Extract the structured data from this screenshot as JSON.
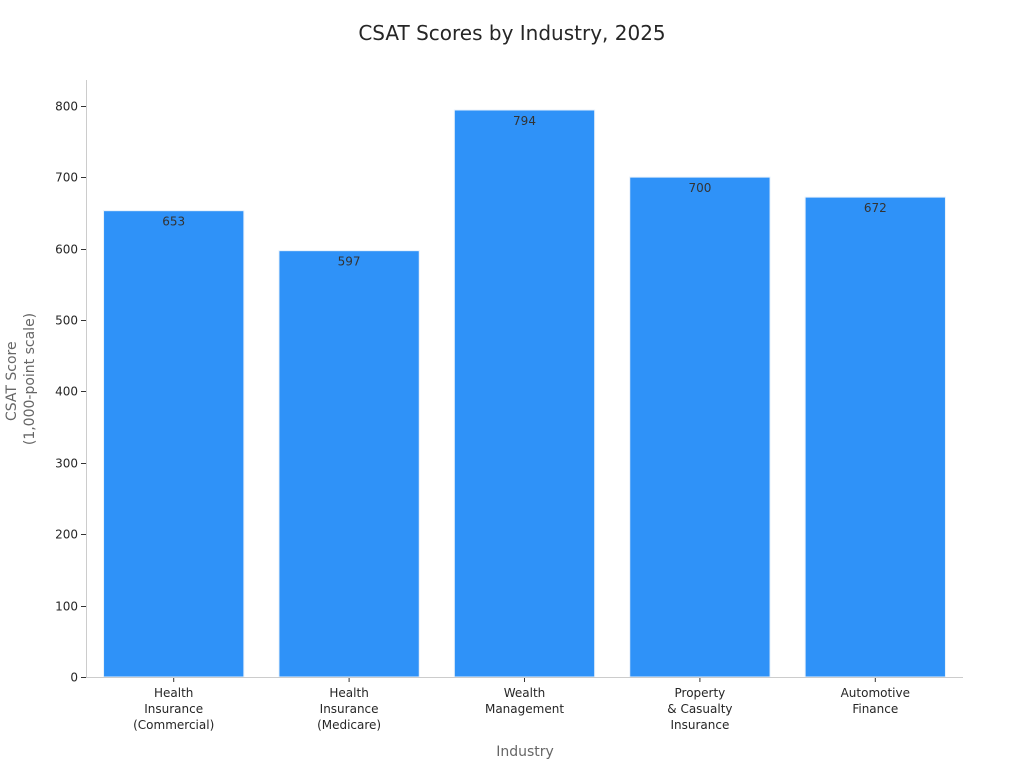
{
  "chart_data": {
    "type": "bar",
    "title": "CSAT Scores by Industry, 2025",
    "xlabel": "Industry",
    "ylabel": [
      "CSAT Score",
      "(1,000-point scale)"
    ],
    "categories": [
      [
        "Health",
        "Insurance",
        "(Commercial)"
      ],
      [
        "Health",
        "Insurance",
        "(Medicare)"
      ],
      [
        "Wealth",
        "Management"
      ],
      [
        "Property",
        "& Casualty",
        "Insurance"
      ],
      [
        "Automotive",
        "Finance"
      ]
    ],
    "values": [
      653,
      597,
      794,
      700,
      672
    ],
    "data_labels": [
      "653",
      "597",
      "794",
      "700",
      "672"
    ],
    "ylim": [
      0,
      836
    ],
    "yticks": [
      0,
      100,
      200,
      300,
      400,
      500,
      600,
      700,
      800
    ],
    "grid": false,
    "bar_color": "#2f92f8"
  }
}
